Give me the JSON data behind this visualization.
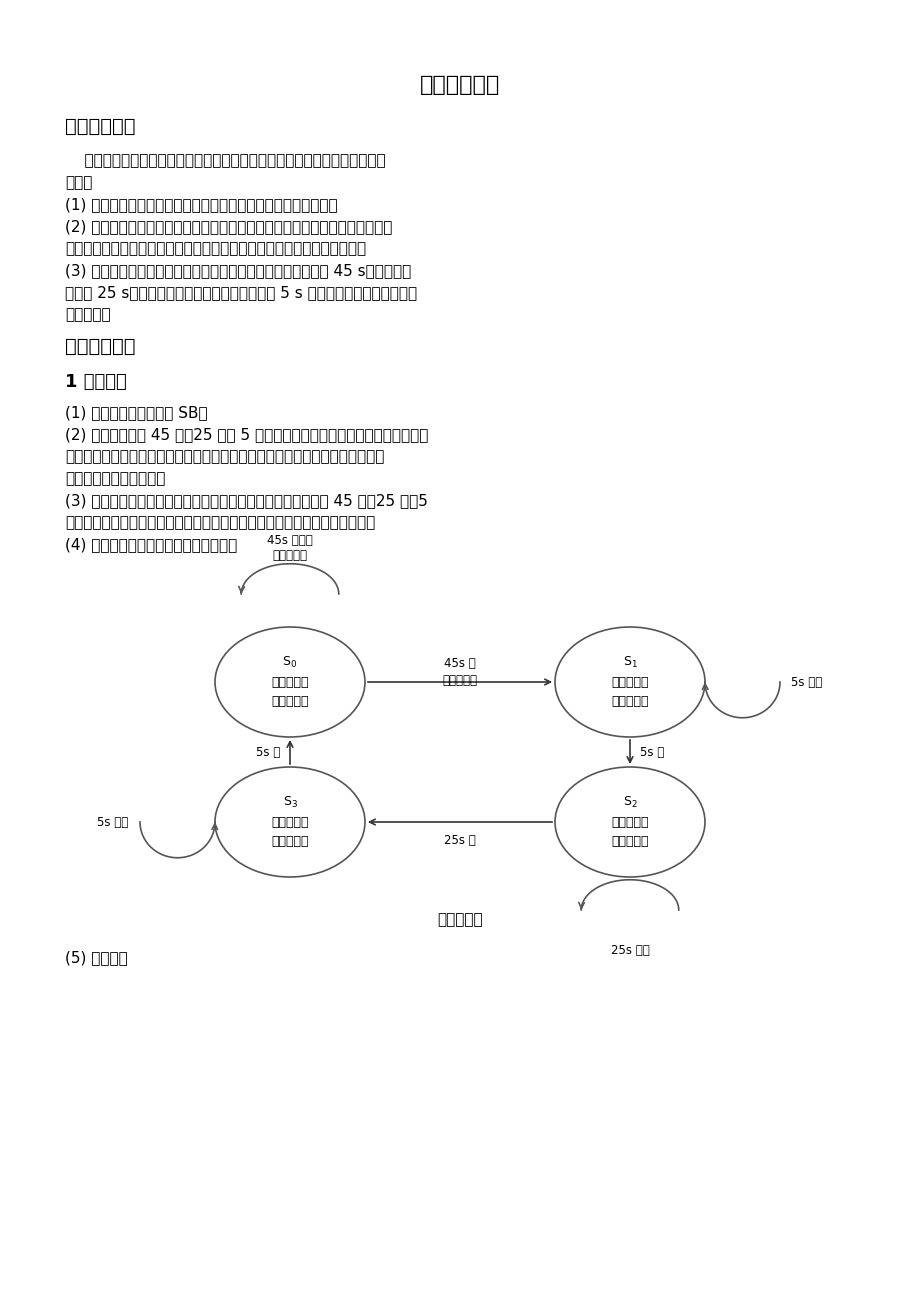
{
  "title": "交通灯控制器",
  "bg_color": "#ffffff",
  "text_color": "#000000",
  "section1_title": "一、设计要求",
  "section1_intro_1": "    设计一个由一条主干道和一条支干道的十字路口的交通灯控制器，具体要求",
  "section1_intro_2": "如下：",
  "section1_items": [
    "(1) 主、支干道各设有一个绿、黄、红指示灯，两个显示数码管。",
    "(2) 主干道处于常允许通行状态，而支干道有车来才允许通行。当主干道允许通",
    "行亮绿灯时，支干道亮红灯。而支干道允许通行亮绿灯时，主干道亮红灯。",
    "(3) 当主、支道均有车时，两者交替允许通行，主干道每次放行 45 s，支干道每",
    "次放行 25 s，由亮绿灯变成亮红灯转换时，先亮 5 s 的黄灯作为过渡，并进行减",
    "计时显示。"
  ],
  "section2_title": "二、设计方案",
  "subsection1_title": "1 基本原理",
  "subsection1_items": [
    "(1) 设置支干道有车开关 SB。",
    "(2) 系统中要求有 45 秒、25 秒和 5 秒三种定时信号，需要设计三种相应的计时",
    "显示电路。计时方法为倒计时。定时的起始信号由主控电路给出，定时时间结束",
    "的信号输入到主控电路。",
    "(3) 主控制电路的输入信号一方面来自车辆检测，另一方面来自 45 秒、25 秒、5",
    "秒的定时到信号；输出有计时启动信号（置计数起始值）和红绿灯驱动信号。",
    "(4) 状态转移如图所示，用状态机描述。"
  ],
  "diagram_caption": "状态转移图",
  "section_last": "(5) 模块结构",
  "state_labels": {
    "S0": [
      "主道绿灯亮",
      "支道红灯亮"
    ],
    "S1": [
      "主道黄灯亮",
      "支道红灯亮"
    ],
    "S2": [
      "主道红灯亮",
      "支道绿灯亮"
    ],
    "S3": [
      "主道红灯亮",
      "支道黄灯亮"
    ]
  },
  "arrow_labels": {
    "S0_S1": "45s 到\n支干道有车",
    "S1_S2": "5s 到",
    "S2_S3": "25s 到",
    "S3_S0": "5s 到"
  },
  "self_loop_labels": {
    "S0": "45s 未到或\n支干道无车",
    "S1": "5s 未到",
    "S2": "25s 未到",
    "S3": "5s 未到"
  }
}
